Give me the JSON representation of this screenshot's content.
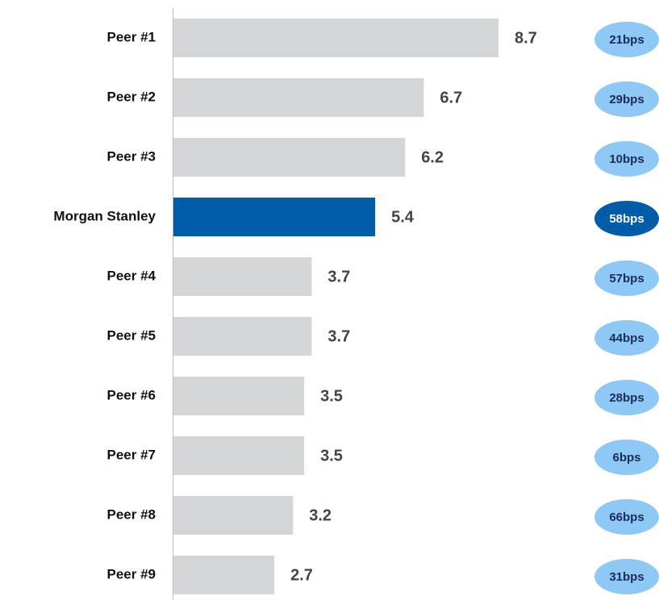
{
  "chart_data": {
    "type": "barh",
    "categories": [
      "Peer #1",
      "Peer #2",
      "Peer #3",
      "Morgan Stanley",
      "Peer #4",
      "Peer #5",
      "Peer #6",
      "Peer #7",
      "Peer #8",
      "Peer #9"
    ],
    "values": [
      8.7,
      6.7,
      6.2,
      5.4,
      3.7,
      3.7,
      3.5,
      3.5,
      3.2,
      2.7
    ],
    "colors": [
      "#d4d5d7",
      "#d4d5d7",
      "#d4d5d7",
      "#005ba8",
      "#d4d5d7",
      "#d4d5d7",
      "#d4d5d7",
      "#d4d5d7",
      "#d4d5d7",
      "#d4d5d7"
    ],
    "badges": [
      "21bps",
      "29bps",
      "10bps",
      "58bps",
      "57bps",
      "44bps",
      "28bps",
      "6bps",
      "66bps",
      "31bps"
    ],
    "badge_colors": [
      "#8ec8f5",
      "#8ec8f5",
      "#8ec8f5",
      "#005ba8",
      "#8ec8f5",
      "#8ec8f5",
      "#8ec8f5",
      "#8ec8f5",
      "#8ec8f5",
      "#8ec8f5"
    ],
    "badge_text_colors": [
      "#1a2b5a",
      "#1a2b5a",
      "#1a2b5a",
      "#ffffff",
      "#1a2b5a",
      "#1a2b5a",
      "#1a2b5a",
      "#1a2b5a",
      "#1a2b5a",
      "#1a2b5a"
    ]
  }
}
